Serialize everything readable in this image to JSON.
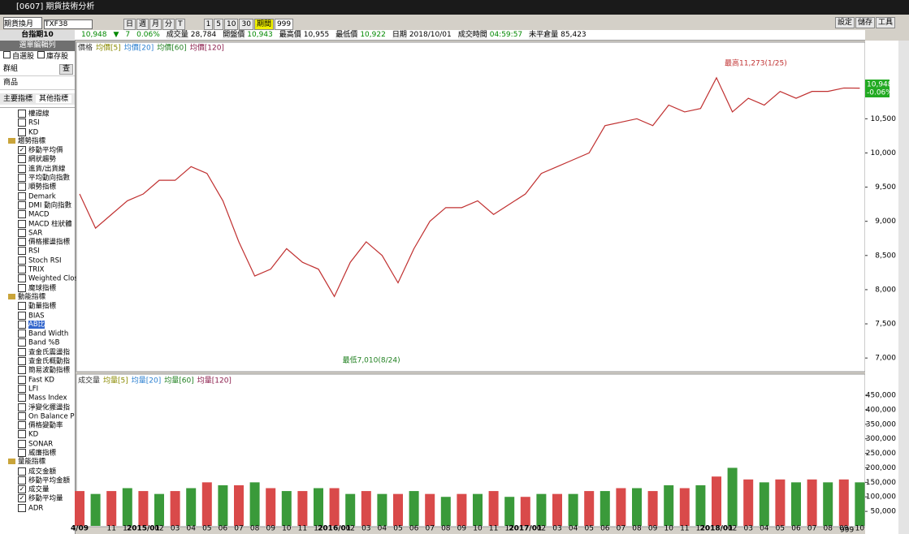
{
  "window": {
    "title": "[0607] 期貨技術分析"
  },
  "toolbar": {
    "contract_mode": "期貨換月",
    "symbol": "TXF38",
    "periods": [
      "日",
      "週",
      "月",
      "分",
      "T"
    ],
    "minutes": [
      "1",
      "5",
      "10",
      "30"
    ],
    "active": "期間",
    "count": "999",
    "right": [
      "設定",
      "儲存",
      "工具"
    ]
  },
  "info": {
    "name": "台指期10",
    "last": "10,948",
    "arrow": "▼",
    "change": "7",
    "pct": "0.06%",
    "fields": [
      [
        "成交量",
        "28,784"
      ],
      [
        "開盤價",
        "10,943"
      ],
      [
        "最高價",
        "10,955"
      ],
      [
        "最低價",
        "10,922"
      ],
      [
        "日期",
        "2018/10/01"
      ],
      [
        "成交時間",
        "04:59:57"
      ],
      [
        "未平倉量",
        "85,423"
      ]
    ]
  },
  "sidebar": {
    "header": "選單編輯列",
    "checks": [
      "自選股",
      "庫存股"
    ],
    "group_label": "群組",
    "query": "查",
    "product": "商品",
    "tabs": [
      "主要指標",
      "其他指標"
    ],
    "items": [
      {
        "label": "權證線",
        "checked": false
      },
      {
        "label": "RSI",
        "checked": false
      },
      {
        "label": "KD",
        "checked": false
      },
      {
        "label": "趨勢指標",
        "group": true
      },
      {
        "label": "移動平均價",
        "checked": true
      },
      {
        "label": "網狀趨勢",
        "checked": false
      },
      {
        "label": "進貨/出貨線",
        "checked": false
      },
      {
        "label": "平均動向指數",
        "checked": false
      },
      {
        "label": "順勢指標",
        "checked": false
      },
      {
        "label": "Demark",
        "checked": false
      },
      {
        "label": "DMI 動向指數",
        "checked": false
      },
      {
        "label": "MACD",
        "checked": false
      },
      {
        "label": "MACD 柱狀體",
        "checked": false
      },
      {
        "label": "SAR",
        "checked": false
      },
      {
        "label": "價格擺盪指標",
        "checked": false
      },
      {
        "label": "RSI",
        "checked": false
      },
      {
        "label": "Stoch RSI",
        "checked": false
      },
      {
        "label": "TRIX",
        "checked": false
      },
      {
        "label": "Weighted Clos",
        "checked": false
      },
      {
        "label": "魔球指標",
        "checked": false
      },
      {
        "label": "動能指標",
        "group": true
      },
      {
        "label": "動量指標",
        "checked": false
      },
      {
        "label": "BIAS",
        "checked": false
      },
      {
        "label": "AB比",
        "checked": false,
        "selected": true
      },
      {
        "label": "Band Width",
        "checked": false
      },
      {
        "label": "Band %B",
        "checked": false
      },
      {
        "label": "查金氏震盪指",
        "checked": false
      },
      {
        "label": "查金氏概動指",
        "checked": false
      },
      {
        "label": "簡易波動指標",
        "checked": false
      },
      {
        "label": "Fast KD",
        "checked": false
      },
      {
        "label": "LFI",
        "checked": false
      },
      {
        "label": "Mass Index",
        "checked": false
      },
      {
        "label": "淨變化擺盪指",
        "checked": false
      },
      {
        "label": "On Balance P",
        "checked": false
      },
      {
        "label": "價格變動率",
        "checked": false
      },
      {
        "label": "KD",
        "checked": false
      },
      {
        "label": "SONAR",
        "checked": false
      },
      {
        "label": "威廉指標",
        "checked": false
      },
      {
        "label": "量能指標",
        "group": true
      },
      {
        "label": "成交金額",
        "checked": false
      },
      {
        "label": "移動平均金額",
        "checked": false
      },
      {
        "label": "成交量",
        "checked": true
      },
      {
        "label": "移動平均量",
        "checked": true
      },
      {
        "label": "ADR",
        "checked": false
      }
    ]
  },
  "price_tag": [
    "10,948",
    "-0.06%"
  ],
  "bottom_count": "999",
  "chart_data": [
    {
      "type": "line",
      "legend": [
        "價格",
        "均價[5]",
        "均價[20]",
        "均價[60]",
        "均價[120]"
      ],
      "color": "#c03030",
      "categories": [
        "4/09",
        null,
        "11",
        "12",
        "2015/01",
        "02",
        "03",
        "04",
        "05",
        "06",
        "07",
        "08",
        "09",
        "10",
        "11",
        "12",
        "2016/01",
        "02",
        "03",
        "04",
        "05",
        "06",
        "07",
        "08",
        "09",
        "10",
        "11",
        "12",
        "2017/01",
        "02",
        "03",
        "04",
        "05",
        "06",
        "07",
        "08",
        "09",
        "10",
        "11",
        "12",
        "2018/01",
        "02",
        "03",
        "04",
        "05",
        "06",
        "07",
        "08",
        "09",
        "10"
      ],
      "values": [
        9400,
        8900,
        9100,
        9300,
        9400,
        9600,
        9600,
        9800,
        9700,
        9300,
        8700,
        8200,
        8300,
        8600,
        8400,
        8300,
        7900,
        8400,
        8700,
        8500,
        8100,
        8600,
        9000,
        9200,
        9200,
        9300,
        9100,
        9250,
        9400,
        9700,
        9800,
        9900,
        10000,
        10400,
        10450,
        10500,
        10400,
        10700,
        10600,
        10650,
        11100,
        10600,
        10800,
        10700,
        10900,
        10800,
        10900,
        10900,
        10950,
        10948
      ],
      "ylim": [
        6800,
        11620
      ],
      "yticks": [
        {
          "value": 7000,
          "label": "7,000"
        },
        {
          "value": 7500,
          "label": "7,500"
        },
        {
          "value": 8000,
          "label": "8,000"
        },
        {
          "value": 8500,
          "label": "8,500"
        },
        {
          "value": 9000,
          "label": "9,000"
        },
        {
          "value": 9500,
          "label": "9,500"
        },
        {
          "value": 10000,
          "label": "10,000"
        },
        {
          "value": 10500,
          "label": "10,500"
        }
      ],
      "annotations": {
        "high": "最高11,273(1/25)",
        "low": "最低7,010(8/24)"
      }
    },
    {
      "type": "bar",
      "legend": [
        "成交量",
        "均量[5]",
        "均量[20]",
        "均量[60]",
        "均量[120]"
      ],
      "color": "#d94a4a",
      "values": [
        120000,
        110000,
        120000,
        130000,
        120000,
        110000,
        120000,
        130000,
        150000,
        140000,
        140000,
        150000,
        130000,
        120000,
        120000,
        130000,
        130000,
        110000,
        120000,
        110000,
        110000,
        120000,
        110000,
        100000,
        110000,
        110000,
        120000,
        100000,
        100000,
        110000,
        110000,
        110000,
        120000,
        120000,
        130000,
        130000,
        120000,
        140000,
        130000,
        140000,
        170000,
        200000,
        160000,
        150000,
        160000,
        150000,
        160000,
        150000,
        160000,
        150000
      ],
      "ylim": [
        0,
        520000
      ],
      "yticks": [
        {
          "value": 50000,
          "label": "50,000"
        },
        {
          "value": 100000,
          "label": "100,000"
        },
        {
          "value": 150000,
          "label": "150,000"
        },
        {
          "value": 200000,
          "label": "200,000"
        },
        {
          "value": 250000,
          "label": "250,000"
        },
        {
          "value": 300000,
          "label": "300,000"
        },
        {
          "value": 350000,
          "label": "350,000"
        },
        {
          "value": 400000,
          "label": "400,000"
        },
        {
          "value": 450000,
          "label": "450,000"
        }
      ]
    }
  ]
}
